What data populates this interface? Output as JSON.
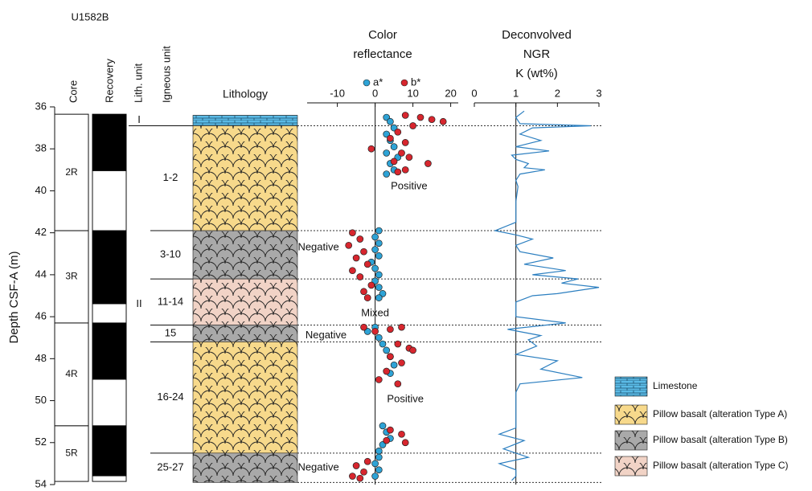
{
  "title": "U1582B",
  "depth_axis": {
    "label": "Depth CSF-A (m)",
    "ylim": [
      36,
      54
    ],
    "yticks": [
      36,
      38,
      40,
      42,
      44,
      46,
      48,
      50,
      52,
      54
    ]
  },
  "columns": {
    "core": "Core",
    "recovery": "Recovery",
    "lith_unit": "Lith. unit",
    "igneous_unit": "Igneous unit",
    "lithology": "Lithology"
  },
  "cores": [
    {
      "name": "2R",
      "top": 36.35,
      "bottom": 41.9
    },
    {
      "name": "3R",
      "top": 41.9,
      "bottom": 46.3
    },
    {
      "name": "4R",
      "top": 46.3,
      "bottom": 51.2
    },
    {
      "name": "5R",
      "top": 51.2,
      "bottom": 53.85
    }
  ],
  "recovery": [
    {
      "top": 36.35,
      "bottom": 39.06
    },
    {
      "top": 41.9,
      "bottom": 45.4
    },
    {
      "top": 46.3,
      "bottom": 49.0
    },
    {
      "top": 51.2,
      "bottom": 53.6
    }
  ],
  "lith_units": [
    {
      "name": "I",
      "top": 36.35,
      "bottom": 36.9
    },
    {
      "name": "II",
      "top": 36.9,
      "bottom": 53.9
    }
  ],
  "igneous_units": [
    {
      "name": "1-2",
      "top": 36.9,
      "bottom": 41.9
    },
    {
      "name": "3-10",
      "top": 41.9,
      "bottom": 44.2
    },
    {
      "name": "11-14",
      "top": 44.2,
      "bottom": 46.4
    },
    {
      "name": "15",
      "top": 46.4,
      "bottom": 47.2
    },
    {
      "name": "16-24",
      "top": 47.2,
      "bottom": 52.5
    },
    {
      "name": "25-27",
      "top": 52.5,
      "bottom": 53.9
    }
  ],
  "lithology": [
    {
      "top": 36.4,
      "bottom": 36.9,
      "color": "#5bbbe6"
    },
    {
      "top": 36.9,
      "bottom": 41.9,
      "color": "#f7d98b"
    },
    {
      "top": 41.9,
      "bottom": 44.2,
      "color": "#a9a9a9"
    },
    {
      "top": 44.2,
      "bottom": 46.4,
      "color": "#f1d3c6"
    },
    {
      "top": 46.4,
      "bottom": 47.2,
      "color": "#a9a9a9"
    },
    {
      "top": 47.2,
      "bottom": 52.5,
      "color": "#f7d98b"
    },
    {
      "top": 52.5,
      "bottom": 53.9,
      "color": "#a9a9a9"
    }
  ],
  "lithology_legend": [
    {
      "label": "Limestone",
      "color": "#5bbbe6"
    },
    {
      "label": "Pillow basalt (alteration Type A)",
      "color": "#f7d98b"
    },
    {
      "label": "Pillow basalt (alteration Type B)",
      "color": "#a9a9a9"
    },
    {
      "label": "Pillow basalt (alteration Type C)",
      "color": "#f1d3c6"
    }
  ],
  "boundaries": [
    36.9,
    41.9,
    44.2,
    46.4,
    47.2,
    52.5,
    53.9
  ],
  "chart_data": [
    {
      "type": "scatter",
      "title": [
        "Color",
        "reflectance"
      ],
      "xlim": [
        -18,
        22
      ],
      "xticks": [
        -10,
        0,
        10,
        20
      ],
      "reference_x": 0,
      "series": [
        {
          "name": "a*",
          "color": "#2ea3d6",
          "x": [
            3,
            4,
            5,
            3,
            4,
            5,
            3,
            6,
            4,
            5,
            3,
            1,
            0,
            1,
            0,
            1,
            -1,
            0,
            1,
            0,
            1,
            2,
            1,
            0,
            -2,
            1,
            2,
            3,
            4,
            5,
            4,
            2,
            3,
            4,
            2,
            1,
            1,
            0,
            1,
            0
          ],
          "y": [
            36.5,
            36.7,
            37.0,
            37.3,
            37.6,
            37.9,
            38.2,
            38.4,
            38.7,
            39.0,
            39.2,
            41.9,
            42.2,
            42.5,
            42.8,
            43.1,
            43.4,
            43.7,
            44.0,
            44.3,
            44.6,
            44.9,
            45.1,
            46.5,
            46.7,
            47.0,
            47.3,
            47.6,
            47.9,
            48.3,
            48.7,
            51.2,
            51.5,
            51.8,
            52.1,
            52.4,
            52.7,
            53.0,
            53.3,
            53.6
          ]
        },
        {
          "name": "b*",
          "color": "#d7262e",
          "x": [
            8,
            12,
            15,
            18,
            10,
            6,
            4,
            8,
            -1,
            7,
            9,
            5,
            14,
            8,
            6,
            -6,
            -4,
            -7,
            -3,
            -5,
            -2,
            -6,
            -4,
            -1,
            -3,
            -2,
            -3,
            0,
            4,
            7,
            6,
            9,
            10,
            4,
            7,
            3,
            1,
            6,
            4,
            7,
            3,
            8,
            -2,
            -5,
            -3,
            -4,
            -6
          ],
          "y": [
            36.4,
            36.5,
            36.6,
            36.7,
            36.9,
            37.2,
            37.5,
            37.7,
            38.0,
            38.2,
            38.4,
            38.6,
            38.7,
            39.0,
            39.1,
            42.0,
            42.3,
            42.6,
            42.9,
            43.2,
            43.5,
            43.8,
            44.1,
            44.5,
            44.8,
            45.1,
            46.5,
            46.7,
            46.6,
            46.5,
            47.3,
            47.5,
            47.6,
            47.9,
            48.2,
            48.6,
            49.0,
            49.2,
            51.4,
            51.6,
            51.9,
            52.0,
            52.9,
            53.1,
            53.4,
            53.7,
            53.6
          ]
        }
      ],
      "annotations": [
        {
          "text": "Positive",
          "x": 9,
          "y": 39.8
        },
        {
          "text": "Negative",
          "x": -15,
          "y": 42.7
        },
        {
          "text": "Mixed",
          "x": 0,
          "y": 45.85
        },
        {
          "text": "Negative",
          "x": -13,
          "y": 46.9
        },
        {
          "text": "Positive",
          "x": 8,
          "y": 49.95
        },
        {
          "text": "Negative",
          "x": -15,
          "y": 53.2
        }
      ]
    },
    {
      "type": "line",
      "title": [
        "Deconvolved",
        "NGR"
      ],
      "xlabel": "K (wt%)",
      "xlim": [
        0,
        3
      ],
      "xticks": [
        0,
        1,
        2,
        3
      ],
      "reference_x": 1,
      "series": [
        {
          "color": "#2c7fc0",
          "x": [
            1.2,
            1.0,
            1.1,
            2.8,
            1.4,
            1.1,
            1.6,
            1.0,
            1.8,
            0.9,
            1.0,
            1.3,
            1.2,
            1.7,
            1.1,
            1.0,
            1.05,
            1.0,
            1.0,
            0.5,
            1.0,
            1.4,
            1.0,
            1.1,
            1.9,
            1.2,
            2.2,
            1.4,
            2.5,
            2.1,
            3.0,
            2.0,
            1.4,
            1.0,
            1.0,
            1.0,
            2.2,
            0.8,
            1.6,
            1.3,
            1.5,
            1.0,
            2.0,
            1.6,
            2.6,
            1.1,
            1.0,
            1.0,
            1.0,
            0.6,
            1.2,
            0.7,
            1.3,
            0.6,
            1.0,
            1.0,
            0.9
          ],
          "y": [
            36.2,
            36.5,
            36.8,
            36.9,
            37.0,
            37.3,
            37.6,
            37.9,
            38.1,
            38.3,
            38.5,
            38.7,
            38.9,
            39.0,
            39.2,
            39.5,
            39.8,
            40.5,
            41.5,
            41.9,
            42.1,
            42.3,
            42.6,
            42.9,
            43.2,
            43.5,
            43.8,
            44.0,
            44.2,
            44.4,
            44.6,
            44.9,
            45.0,
            45.3,
            45.6,
            46.0,
            46.3,
            46.6,
            46.9,
            47.1,
            47.4,
            47.8,
            48.1,
            48.5,
            48.9,
            49.2,
            49.6,
            50.5,
            51.3,
            51.6,
            51.9,
            52.3,
            52.7,
            53.0,
            53.3,
            53.6,
            53.8
          ]
        }
      ]
    }
  ]
}
